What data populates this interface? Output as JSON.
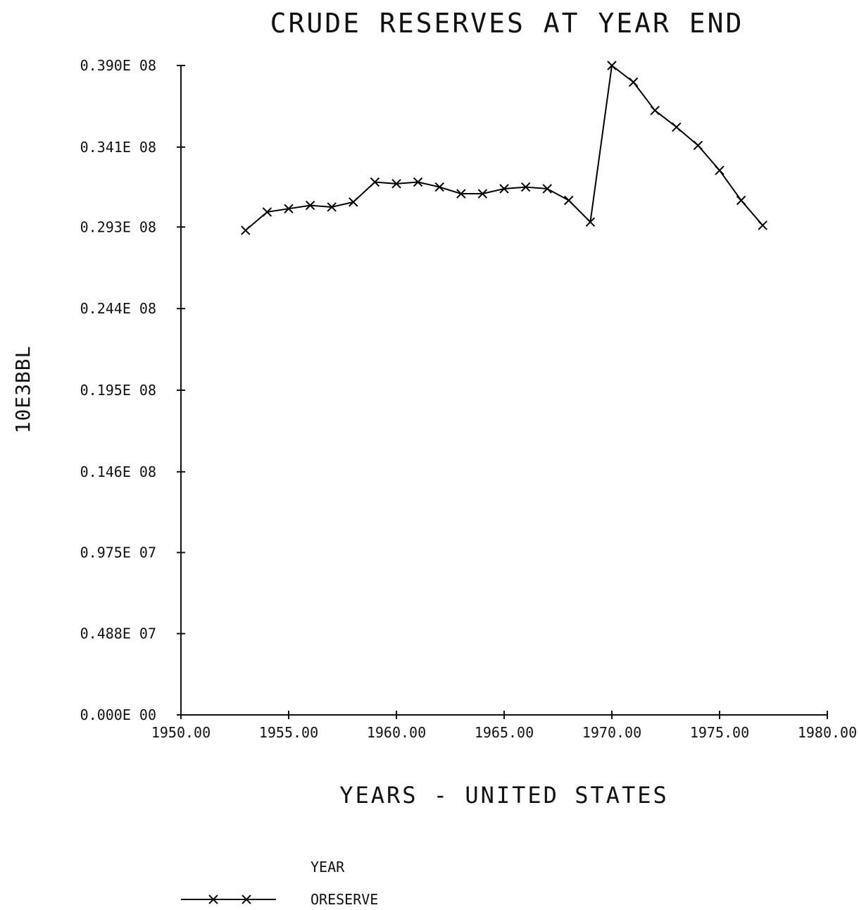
{
  "chart_data": {
    "type": "line",
    "title": "CRUDE RESERVES AT YEAR END",
    "xlabel": "YEARS - UNITED STATES",
    "ylabel": "10E3BBL",
    "xlim": [
      1950,
      1980
    ],
    "ylim": [
      0,
      39000000
    ],
    "x_ticks": [
      {
        "value": 1950,
        "label": "1950.00"
      },
      {
        "value": 1955,
        "label": "1955.00"
      },
      {
        "value": 1960,
        "label": "1960.00"
      },
      {
        "value": 1965,
        "label": "1965.00"
      },
      {
        "value": 1970,
        "label": "1970.00"
      },
      {
        "value": 1975,
        "label": "1975.00"
      },
      {
        "value": 1980,
        "label": "1980.00"
      }
    ],
    "y_ticks": [
      {
        "value": 0,
        "label": "0.000E 00"
      },
      {
        "value": 4880000,
        "label": "0.488E 07"
      },
      {
        "value": 9750000,
        "label": "0.975E 07"
      },
      {
        "value": 14600000,
        "label": "0.146E 08"
      },
      {
        "value": 19500000,
        "label": "0.195E 08"
      },
      {
        "value": 24400000,
        "label": "0.244E 08"
      },
      {
        "value": 29300000,
        "label": "0.293E 08"
      },
      {
        "value": 34100000,
        "label": "0.341E 08"
      },
      {
        "value": 39000000,
        "label": "0.390E 08"
      }
    ],
    "legend": {
      "header": "YEAR",
      "placement": "bottom"
    },
    "series": [
      {
        "name": "ORESERVE",
        "color": "#000000",
        "marker": "x",
        "x": [
          1953,
          1954,
          1955,
          1956,
          1957,
          1958,
          1959,
          1960,
          1961,
          1962,
          1963,
          1964,
          1965,
          1966,
          1967,
          1968,
          1969,
          1970,
          1971,
          1972,
          1973,
          1974,
          1975,
          1976,
          1977
        ],
        "values": [
          29100000,
          30200000,
          30400000,
          30600000,
          30500000,
          30800000,
          32000000,
          31900000,
          32000000,
          31700000,
          31300000,
          31300000,
          31600000,
          31700000,
          31600000,
          30900000,
          29600000,
          39000000,
          38000000,
          36300000,
          35300000,
          34200000,
          32700000,
          30900000,
          29400000
        ]
      }
    ],
    "grid": false
  }
}
